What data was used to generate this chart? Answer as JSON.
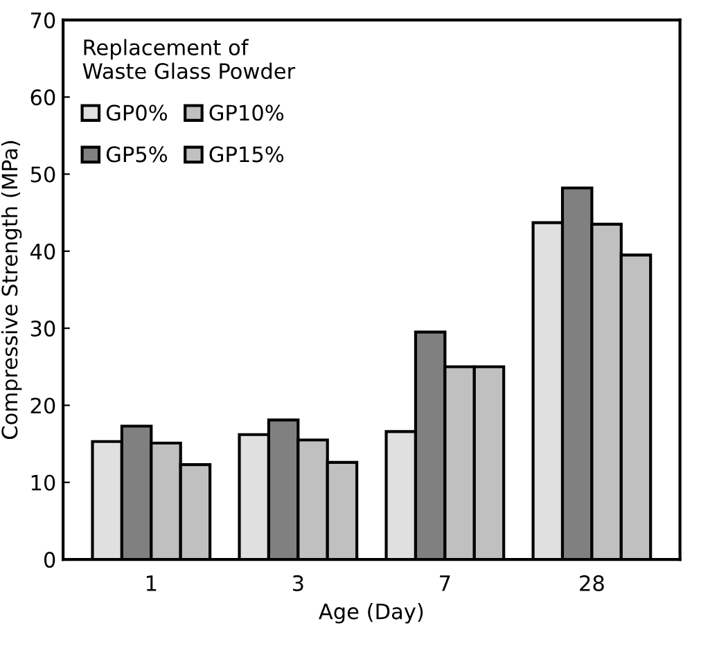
{
  "chart_data": {
    "type": "bar",
    "xlabel": "Age (Day)",
    "ylabel": "Compressive Strength (MPa)",
    "legend_title": "Replacement of\nWaste Glass Powder",
    "categories": [
      "1",
      "3",
      "7",
      "28"
    ],
    "series": [
      {
        "name": "GP0%",
        "color": "#e0e0e0",
        "values": [
          15.3,
          16.2,
          16.6,
          43.7
        ]
      },
      {
        "name": "GP5%",
        "color": "#808080",
        "values": [
          17.3,
          18.1,
          29.5,
          48.2
        ]
      },
      {
        "name": "GP10%",
        "color": "#c0c0c0",
        "values": [
          15.1,
          15.5,
          25.0,
          43.5
        ]
      },
      {
        "name": "GP15%",
        "color": "#c0c0c0",
        "values": [
          12.3,
          12.6,
          25.0,
          39.5
        ]
      }
    ],
    "ylim": [
      0,
      70
    ],
    "yticks": [
      0,
      10,
      20,
      30,
      40,
      50,
      60,
      70
    ],
    "grid": false,
    "legend": "top left"
  }
}
